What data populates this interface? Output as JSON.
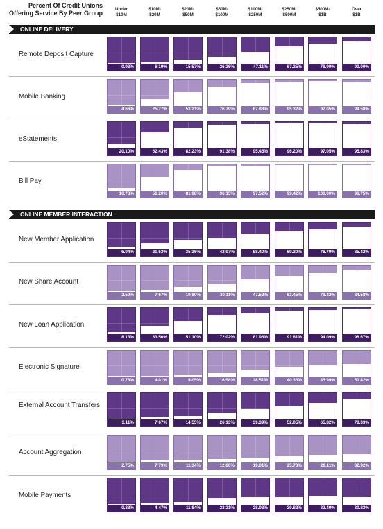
{
  "header": {
    "title": "Percent Of Credit Unions Offering Service By Peer Group"
  },
  "chart_data": {
    "type": "table",
    "title": "Percent Of Credit Unions Offering Service By Peer Group",
    "columns": [
      {
        "line1": "Under",
        "line2": "$10M"
      },
      {
        "line1": "$10M-",
        "line2": "$20M"
      },
      {
        "line1": "$20M-",
        "line2": "$50M"
      },
      {
        "line1": "$50M-",
        "line2": "$100M"
      },
      {
        "line1": "$100M-",
        "line2": "$250M"
      },
      {
        "line1": "$250M-",
        "line2": "$500M"
      },
      {
        "line1": "$500M-",
        "line2": "$1B"
      },
      {
        "line1": "Over",
        "line2": "$1B"
      }
    ],
    "sections": [
      {
        "name": "ONLINE DELIVERY",
        "rows": [
          {
            "label": "Remote Deposit Capture",
            "style": "dark",
            "values": [
              "0.93%",
              "6.19%",
              "15.57%",
              "26.26%",
              "47.11%",
              "67.25%",
              "78.90%",
              "90.00%"
            ]
          },
          {
            "label": "Mobile Banking",
            "style": "light",
            "values": [
              "4.66%",
              "25.77%",
              "53.21%",
              "76.79%",
              "87.88%",
              "95.32%",
              "97.05%",
              "94.58%"
            ]
          },
          {
            "label": "eStatements",
            "style": "dark",
            "values": [
              "20.10%",
              "62.43%",
              "82.23%",
              "91.38%",
              "95.45%",
              "96.20%",
              "97.05%",
              "95.83%"
            ]
          },
          {
            "label": "Bill Pay",
            "style": "light",
            "values": [
              "10.78%",
              "51.20%",
              "81.98%",
              "96.15%",
              "97.52%",
              "99.42%",
              "100.00%",
              "98.75%"
            ]
          }
        ]
      },
      {
        "name": "ONLINE MEMBER INTERACTION",
        "rows": [
          {
            "label": "New Member Application",
            "style": "dark",
            "values": [
              "6.94%",
              "21.53%",
              "35.36%",
              "42.97%",
              "58.40%",
              "69.30%",
              "76.79%",
              "85.42%"
            ]
          },
          {
            "label": "New Share Account",
            "style": "light",
            "values": [
              "2.59%",
              "7.67%",
              "19.80%",
              "30.11%",
              "47.52%",
              "63.45%",
              "73.42%",
              "84.58%"
            ]
          },
          {
            "label": "New Loan Application",
            "style": "dark",
            "values": [
              "8.13%",
              "33.56%",
              "51.10%",
              "72.02%",
              "81.96%",
              "91.81%",
              "94.09%",
              "96.67%"
            ]
          },
          {
            "label": "Electronic Signature",
            "style": "light",
            "values": [
              "0.78%",
              "4.01%",
              "9.05%",
              "16.58%",
              "28.51%",
              "40.35%",
              "45.99%",
              "50.42%"
            ]
          },
          {
            "label": "External Account Transfers",
            "style": "dark",
            "values": [
              "3.11%",
              "7.67%",
              "14.55%",
              "26.13%",
              "39.39%",
              "52.05%",
              "65.82%",
              "78.33%"
            ]
          },
          {
            "label": "Account Aggregation",
            "style": "light",
            "values": [
              "2.75%",
              "7.79%",
              "11.34%",
              "12.86%",
              "19.01%",
              "25.73%",
              "29.11%",
              "32.92%"
            ]
          },
          {
            "label": "Mobile Payments",
            "style": "dark",
            "values": [
              "0.88%",
              "4.47%",
              "11.84%",
              "23.21%",
              "28.93%",
              "29.82%",
              "32.49%",
              "30.83%"
            ]
          }
        ]
      }
    ]
  }
}
